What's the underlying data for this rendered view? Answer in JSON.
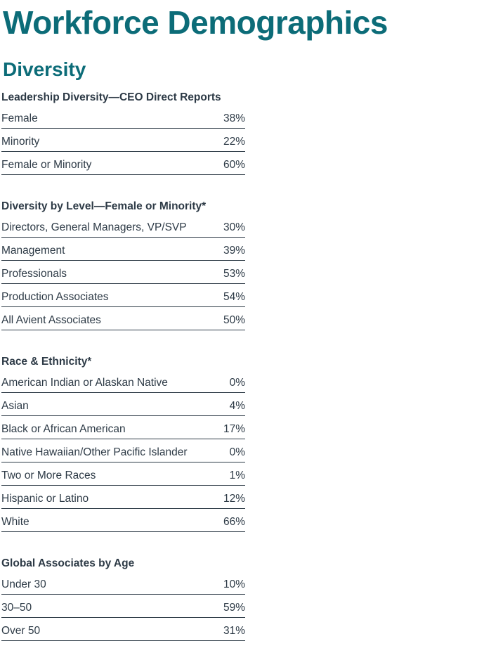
{
  "page": {
    "title": "Workforce Demographics",
    "section": "Diversity"
  },
  "colors": {
    "accent_teal": "#0C6C78",
    "text_dark": "#2D3A46"
  },
  "tables": [
    {
      "heading": "Leadership Diversity—CEO Direct Reports",
      "rows": [
        {
          "label": "Female",
          "value": "38%"
        },
        {
          "label": "Minority",
          "value": "22%"
        },
        {
          "label": "Female or Minority",
          "value": "60%"
        }
      ]
    },
    {
      "heading": "Diversity by Level—Female or Minority*",
      "rows": [
        {
          "label": "Directors, General Managers, VP/SVP",
          "value": "30%"
        },
        {
          "label": "Management",
          "value": "39%"
        },
        {
          "label": "Professionals",
          "value": "53%"
        },
        {
          "label": "Production Associates",
          "value": "54%"
        },
        {
          "label": "All Avient Associates",
          "value": "50%"
        }
      ]
    },
    {
      "heading": "Race & Ethnicity*",
      "rows": [
        {
          "label": "American Indian or Alaskan Native",
          "value": "0%"
        },
        {
          "label": "Asian",
          "value": "4%"
        },
        {
          "label": "Black or African American",
          "value": "17%"
        },
        {
          "label": "Native Hawaiian/Other Pacific Islander",
          "value": "0%"
        },
        {
          "label": "Two or More Races",
          "value": "1%"
        },
        {
          "label": "Hispanic or Latino",
          "value": "12%"
        },
        {
          "label": "White",
          "value": "66%"
        }
      ]
    },
    {
      "heading": "Global Associates by Age",
      "rows": [
        {
          "label": "Under 30",
          "value": "10%"
        },
        {
          "label": "30–50",
          "value": "59%"
        },
        {
          "label": "Over 50",
          "value": "31%"
        }
      ]
    }
  ]
}
